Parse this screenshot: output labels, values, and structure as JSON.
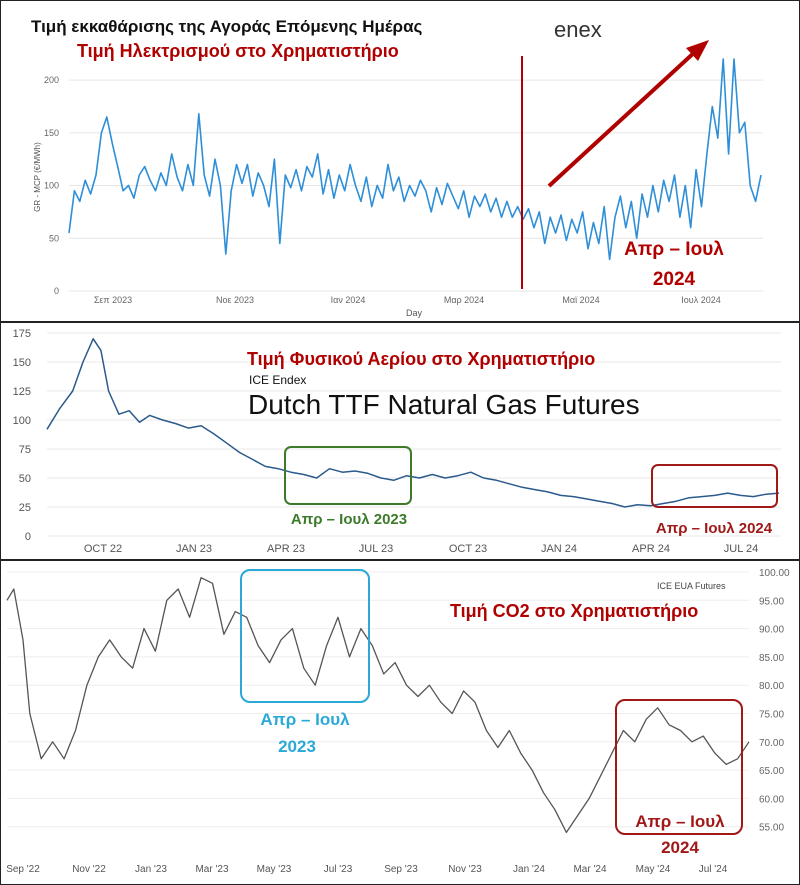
{
  "chart_data": [
    {
      "type": "line",
      "title": "Τιμή εκκαθάρισης της Αγοράς Επόμενης Ημέρας",
      "subtitle": "Τιμή Ηλεκτρισμού στο Χρηματιστήριο",
      "logo": "enex",
      "xlabel": "Day",
      "ylabel": "GR - MCP (€/MWh)",
      "ylim": [
        0,
        220
      ],
      "yticks": [
        "0",
        "50",
        "100",
        "150",
        "200"
      ],
      "xticks": [
        "Σεπ 2023",
        "Νοε 2023",
        "Ιαν 2024",
        "Μαρ 2024",
        "Μαϊ 2024",
        "Ιουλ 2024"
      ],
      "series_color": "#2e8fd8",
      "accent_color": "#b00000",
      "annotation": [
        "Απρ – Ιουλ",
        "2024"
      ],
      "points": [
        [
          0,
          55
        ],
        [
          2,
          95
        ],
        [
          4,
          85
        ],
        [
          6,
          105
        ],
        [
          8,
          92
        ],
        [
          10,
          110
        ],
        [
          12,
          150
        ],
        [
          14,
          165
        ],
        [
          16,
          140
        ],
        [
          18,
          118
        ],
        [
          20,
          95
        ],
        [
          22,
          100
        ],
        [
          24,
          88
        ],
        [
          26,
          110
        ],
        [
          28,
          118
        ],
        [
          30,
          105
        ],
        [
          32,
          95
        ],
        [
          34,
          112
        ],
        [
          36,
          100
        ],
        [
          38,
          130
        ],
        [
          40,
          108
        ],
        [
          42,
          95
        ],
        [
          44,
          120
        ],
        [
          46,
          100
        ],
        [
          48,
          168
        ],
        [
          50,
          110
        ],
        [
          52,
          90
        ],
        [
          54,
          125
        ],
        [
          56,
          100
        ],
        [
          58,
          35
        ],
        [
          60,
          95
        ],
        [
          62,
          120
        ],
        [
          64,
          102
        ],
        [
          66,
          120
        ],
        [
          68,
          90
        ],
        [
          70,
          112
        ],
        [
          72,
          100
        ],
        [
          74,
          80
        ],
        [
          76,
          125
        ],
        [
          78,
          45
        ],
        [
          80,
          110
        ],
        [
          82,
          98
        ],
        [
          84,
          115
        ],
        [
          86,
          95
        ],
        [
          88,
          118
        ],
        [
          90,
          108
        ],
        [
          92,
          130
        ],
        [
          94,
          92
        ],
        [
          96,
          115
        ],
        [
          98,
          88
        ],
        [
          100,
          110
        ],
        [
          102,
          95
        ],
        [
          104,
          120
        ],
        [
          106,
          100
        ],
        [
          108,
          85
        ],
        [
          110,
          108
        ],
        [
          112,
          80
        ],
        [
          114,
          100
        ],
        [
          116,
          88
        ],
        [
          118,
          120
        ],
        [
          120,
          95
        ],
        [
          122,
          108
        ],
        [
          124,
          85
        ],
        [
          126,
          100
        ],
        [
          128,
          90
        ],
        [
          130,
          105
        ],
        [
          132,
          95
        ],
        [
          134,
          75
        ],
        [
          136,
          98
        ],
        [
          138,
          82
        ],
        [
          140,
          102
        ],
        [
          142,
          90
        ],
        [
          144,
          78
        ],
        [
          146,
          95
        ],
        [
          148,
          70
        ],
        [
          150,
          90
        ],
        [
          152,
          80
        ],
        [
          154,
          92
        ],
        [
          156,
          75
        ],
        [
          158,
          88
        ],
        [
          160,
          70
        ],
        [
          162,
          85
        ],
        [
          164,
          70
        ],
        [
          166,
          80
        ],
        [
          168,
          68
        ],
        [
          170,
          78
        ],
        [
          172,
          60
        ],
        [
          174,
          75
        ],
        [
          176,
          45
        ],
        [
          178,
          70
        ],
        [
          180,
          55
        ],
        [
          182,
          72
        ],
        [
          184,
          48
        ],
        [
          186,
          68
        ],
        [
          188,
          55
        ],
        [
          190,
          75
        ],
        [
          192,
          40
        ],
        [
          194,
          65
        ],
        [
          196,
          45
        ],
        [
          198,
          80
        ],
        [
          200,
          30
        ],
        [
          202,
          70
        ],
        [
          204,
          90
        ],
        [
          206,
          60
        ],
        [
          208,
          85
        ],
        [
          210,
          50
        ],
        [
          212,
          92
        ],
        [
          214,
          70
        ],
        [
          216,
          100
        ],
        [
          218,
          75
        ],
        [
          220,
          105
        ],
        [
          222,
          85
        ],
        [
          224,
          110
        ],
        [
          226,
          70
        ],
        [
          228,
          100
        ],
        [
          230,
          60
        ],
        [
          232,
          115
        ],
        [
          234,
          80
        ],
        [
          236,
          130
        ],
        [
          238,
          175
        ],
        [
          240,
          145
        ],
        [
          242,
          220
        ],
        [
          244,
          130
        ],
        [
          246,
          220
        ],
        [
          248,
          150
        ],
        [
          250,
          160
        ],
        [
          252,
          100
        ],
        [
          254,
          85
        ],
        [
          256,
          110
        ]
      ]
    },
    {
      "type": "line",
      "title": "Τιμή Φυσικού Αερίου στο Χρηματιστήριο",
      "source": "ICE Endex",
      "subtitle": "Dutch TTF Natural Gas Futures",
      "ylim": [
        0,
        175
      ],
      "yticks": [
        "0",
        "25",
        "50",
        "75",
        "100",
        "125",
        "150",
        "175"
      ],
      "xticks": [
        "OCT 22",
        "JAN 23",
        "APR 23",
        "JUL 23",
        "OCT 23",
        "JAN 24",
        "APR 24",
        "JUL 24"
      ],
      "series_color": "#2b5a8c",
      "highlight_2023": {
        "label": "Απρ – Ιουλ 2023",
        "color": "#3d7a2a"
      },
      "highlight_2024": {
        "label": "Απρ – Ιουλ 2024",
        "color": "#a01818"
      },
      "points": [
        [
          0,
          92
        ],
        [
          0.5,
          110
        ],
        [
          1,
          125
        ],
        [
          1.4,
          150
        ],
        [
          1.8,
          170
        ],
        [
          2.1,
          160
        ],
        [
          2.4,
          125
        ],
        [
          2.8,
          105
        ],
        [
          3.2,
          108
        ],
        [
          3.6,
          98
        ],
        [
          4,
          104
        ],
        [
          4.5,
          100
        ],
        [
          5,
          97
        ],
        [
          5.5,
          93
        ],
        [
          6,
          95
        ],
        [
          6.5,
          88
        ],
        [
          7,
          80
        ],
        [
          7.5,
          72
        ],
        [
          8,
          66
        ],
        [
          8.5,
          60
        ],
        [
          9,
          58
        ],
        [
          9.5,
          55
        ],
        [
          10,
          53
        ],
        [
          10.5,
          50
        ],
        [
          11,
          58
        ],
        [
          11.5,
          55
        ],
        [
          12,
          56
        ],
        [
          12.5,
          54
        ],
        [
          13,
          50
        ],
        [
          13.5,
          48
        ],
        [
          14,
          52
        ],
        [
          14.5,
          50
        ],
        [
          15,
          53
        ],
        [
          15.5,
          50
        ],
        [
          16,
          52
        ],
        [
          16.5,
          55
        ],
        [
          17,
          50
        ],
        [
          17.5,
          48
        ],
        [
          18,
          45
        ],
        [
          18.5,
          42
        ],
        [
          19,
          40
        ],
        [
          19.5,
          38
        ],
        [
          20,
          35
        ],
        [
          20.5,
          34
        ],
        [
          21,
          32
        ],
        [
          21.5,
          30
        ],
        [
          22,
          28
        ],
        [
          22.5,
          25
        ],
        [
          23,
          27
        ],
        [
          23.5,
          26
        ],
        [
          24,
          28
        ],
        [
          24.5,
          30
        ],
        [
          25,
          33
        ],
        [
          25.5,
          34
        ],
        [
          26,
          35
        ],
        [
          26.5,
          37
        ],
        [
          27,
          35
        ],
        [
          27.5,
          34
        ],
        [
          28,
          36
        ],
        [
          28.5,
          37
        ]
      ]
    },
    {
      "type": "line",
      "source": "ICE EUA Futures",
      "title": "Τιμή CO2 στο Χρηματιστήριο",
      "ylim": [
        50,
        100
      ],
      "yticks": [
        "55.00",
        "60.00",
        "65.00",
        "70.00",
        "75.00",
        "80.00",
        "85.00",
        "90.00",
        "95.00",
        "100.00"
      ],
      "xticks": [
        "Sep '22",
        "Nov '22",
        "Jan '23",
        "Mar '23",
        "May '23",
        "Jul '23",
        "Sep '23",
        "Nov '23",
        "Jan '24",
        "Mar '24",
        "May '24",
        "Jul '24"
      ],
      "series_color": "#555555",
      "highlight_2023": {
        "label": [
          "Απρ – Ιουλ",
          "2023"
        ],
        "color": "#2aa9d8"
      },
      "highlight_2024": {
        "label": [
          "Απρ – Ιουλ",
          "2024"
        ],
        "color": "#a01818"
      },
      "points": [
        [
          0,
          95
        ],
        [
          0.3,
          97
        ],
        [
          0.7,
          88
        ],
        [
          1,
          75
        ],
        [
          1.5,
          67
        ],
        [
          2,
          70
        ],
        [
          2.5,
          67
        ],
        [
          3,
          72
        ],
        [
          3.5,
          80
        ],
        [
          4,
          85
        ],
        [
          4.5,
          88
        ],
        [
          5,
          85
        ],
        [
          5.5,
          83
        ],
        [
          6,
          90
        ],
        [
          6.5,
          86
        ],
        [
          7,
          95
        ],
        [
          7.5,
          97
        ],
        [
          8,
          92
        ],
        [
          8.5,
          99
        ],
        [
          9,
          98
        ],
        [
          9.5,
          89
        ],
        [
          10,
          93
        ],
        [
          10.5,
          92
        ],
        [
          11,
          87
        ],
        [
          11.5,
          84
        ],
        [
          12,
          88
        ],
        [
          12.5,
          90
        ],
        [
          13,
          83
        ],
        [
          13.5,
          80
        ],
        [
          14,
          87
        ],
        [
          14.5,
          92
        ],
        [
          15,
          85
        ],
        [
          15.5,
          90
        ],
        [
          16,
          87
        ],
        [
          16.5,
          82
        ],
        [
          17,
          84
        ],
        [
          17.5,
          80
        ],
        [
          18,
          78
        ],
        [
          18.5,
          80
        ],
        [
          19,
          77
        ],
        [
          19.5,
          75
        ],
        [
          20,
          79
        ],
        [
          20.5,
          77
        ],
        [
          21,
          72
        ],
        [
          21.5,
          69
        ],
        [
          22,
          72
        ],
        [
          22.5,
          68
        ],
        [
          23,
          65
        ],
        [
          23.5,
          61
        ],
        [
          24,
          58
        ],
        [
          24.5,
          54
        ],
        [
          25,
          57
        ],
        [
          25.5,
          60
        ],
        [
          26,
          64
        ],
        [
          26.5,
          68
        ],
        [
          27,
          72
        ],
        [
          27.5,
          70
        ],
        [
          28,
          74
        ],
        [
          28.5,
          76
        ],
        [
          29,
          73
        ],
        [
          29.5,
          72
        ],
        [
          30,
          70
        ],
        [
          30.5,
          71
        ],
        [
          31,
          68
        ],
        [
          31.5,
          66
        ],
        [
          32,
          67
        ],
        [
          32.5,
          70
        ]
      ]
    }
  ]
}
